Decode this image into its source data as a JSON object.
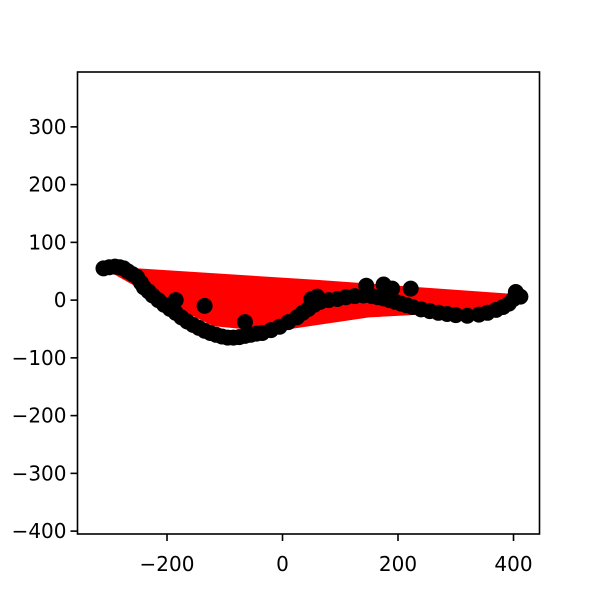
{
  "chart_data": {
    "type": "scatter",
    "title": "",
    "xlabel": "",
    "ylabel": "",
    "xlim": [
      -355,
      445
    ],
    "ylim": [
      -405,
      395
    ],
    "xticks": [
      -200,
      0,
      200,
      400
    ],
    "yticks": [
      -400,
      -300,
      -200,
      -100,
      0,
      100,
      200,
      300
    ],
    "xtick_labels": [
      "−200",
      "0",
      "200",
      "400"
    ],
    "ytick_labels": [
      "−400",
      "−300",
      "−200",
      "−100",
      "0",
      "100",
      "200",
      "300"
    ],
    "grid": false,
    "legend": false,
    "colors": {
      "points": "#000000",
      "fill": "#ff0000"
    },
    "filled_region": [
      [
        -310,
        55
      ],
      [
        -250,
        55
      ],
      [
        60,
        35
      ],
      [
        410,
        10
      ],
      [
        330,
        -20
      ],
      [
        150,
        -30
      ],
      [
        -20,
        -55
      ],
      [
        -120,
        -45
      ],
      [
        -230,
        10
      ]
    ],
    "series": [
      {
        "points": [
          [
            -310,
            55
          ],
          [
            -300,
            57
          ],
          [
            -290,
            58
          ],
          [
            -282,
            57
          ],
          [
            -275,
            55
          ],
          [
            -268,
            50
          ],
          [
            -260,
            45
          ],
          [
            -252,
            40
          ],
          [
            -245,
            30
          ],
          [
            -240,
            22
          ],
          [
            -232,
            15
          ],
          [
            -225,
            8
          ],
          [
            -215,
            0
          ],
          [
            -205,
            -8
          ],
          [
            -195,
            -15
          ],
          [
            -185,
            -22
          ],
          [
            -175,
            -30
          ],
          [
            -165,
            -37
          ],
          [
            -155,
            -43
          ],
          [
            -145,
            -48
          ],
          [
            -135,
            -53
          ],
          [
            -125,
            -57
          ],
          [
            -115,
            -60
          ],
          [
            -105,
            -63
          ],
          [
            -95,
            -65
          ],
          [
            -85,
            -65
          ],
          [
            -75,
            -64
          ],
          [
            -65,
            -62
          ],
          [
            -55,
            -60
          ],
          [
            -45,
            -58
          ],
          [
            -35,
            -57
          ],
          [
            -20,
            -52
          ],
          [
            -5,
            -46
          ],
          [
            10,
            -38
          ],
          [
            25,
            -30
          ],
          [
            35,
            -22
          ],
          [
            45,
            -15
          ],
          [
            55,
            -8
          ],
          [
            65,
            -3
          ],
          [
            80,
            0
          ],
          [
            95,
            2
          ],
          [
            110,
            5
          ],
          [
            125,
            7
          ],
          [
            140,
            8
          ],
          [
            155,
            7
          ],
          [
            165,
            5
          ],
          [
            175,
            3
          ],
          [
            185,
            0
          ],
          [
            195,
            -3
          ],
          [
            205,
            -6
          ],
          [
            215,
            -9
          ],
          [
            225,
            -12
          ],
          [
            240,
            -16
          ],
          [
            255,
            -19
          ],
          [
            270,
            -22
          ],
          [
            285,
            -24
          ],
          [
            300,
            -26
          ],
          [
            320,
            -27
          ],
          [
            340,
            -25
          ],
          [
            355,
            -22
          ],
          [
            370,
            -17
          ],
          [
            382,
            -12
          ],
          [
            392,
            -6
          ],
          [
            400,
            2
          ],
          [
            408,
            8
          ],
          [
            412,
            6
          ],
          [
            404,
            14
          ],
          [
            -185,
            0
          ],
          [
            -135,
            -10
          ],
          [
            -65,
            -38
          ],
          [
            50,
            2
          ],
          [
            60,
            6
          ],
          [
            145,
            25
          ],
          [
            175,
            27
          ],
          [
            190,
            20
          ],
          [
            222,
            20
          ]
        ]
      }
    ]
  }
}
